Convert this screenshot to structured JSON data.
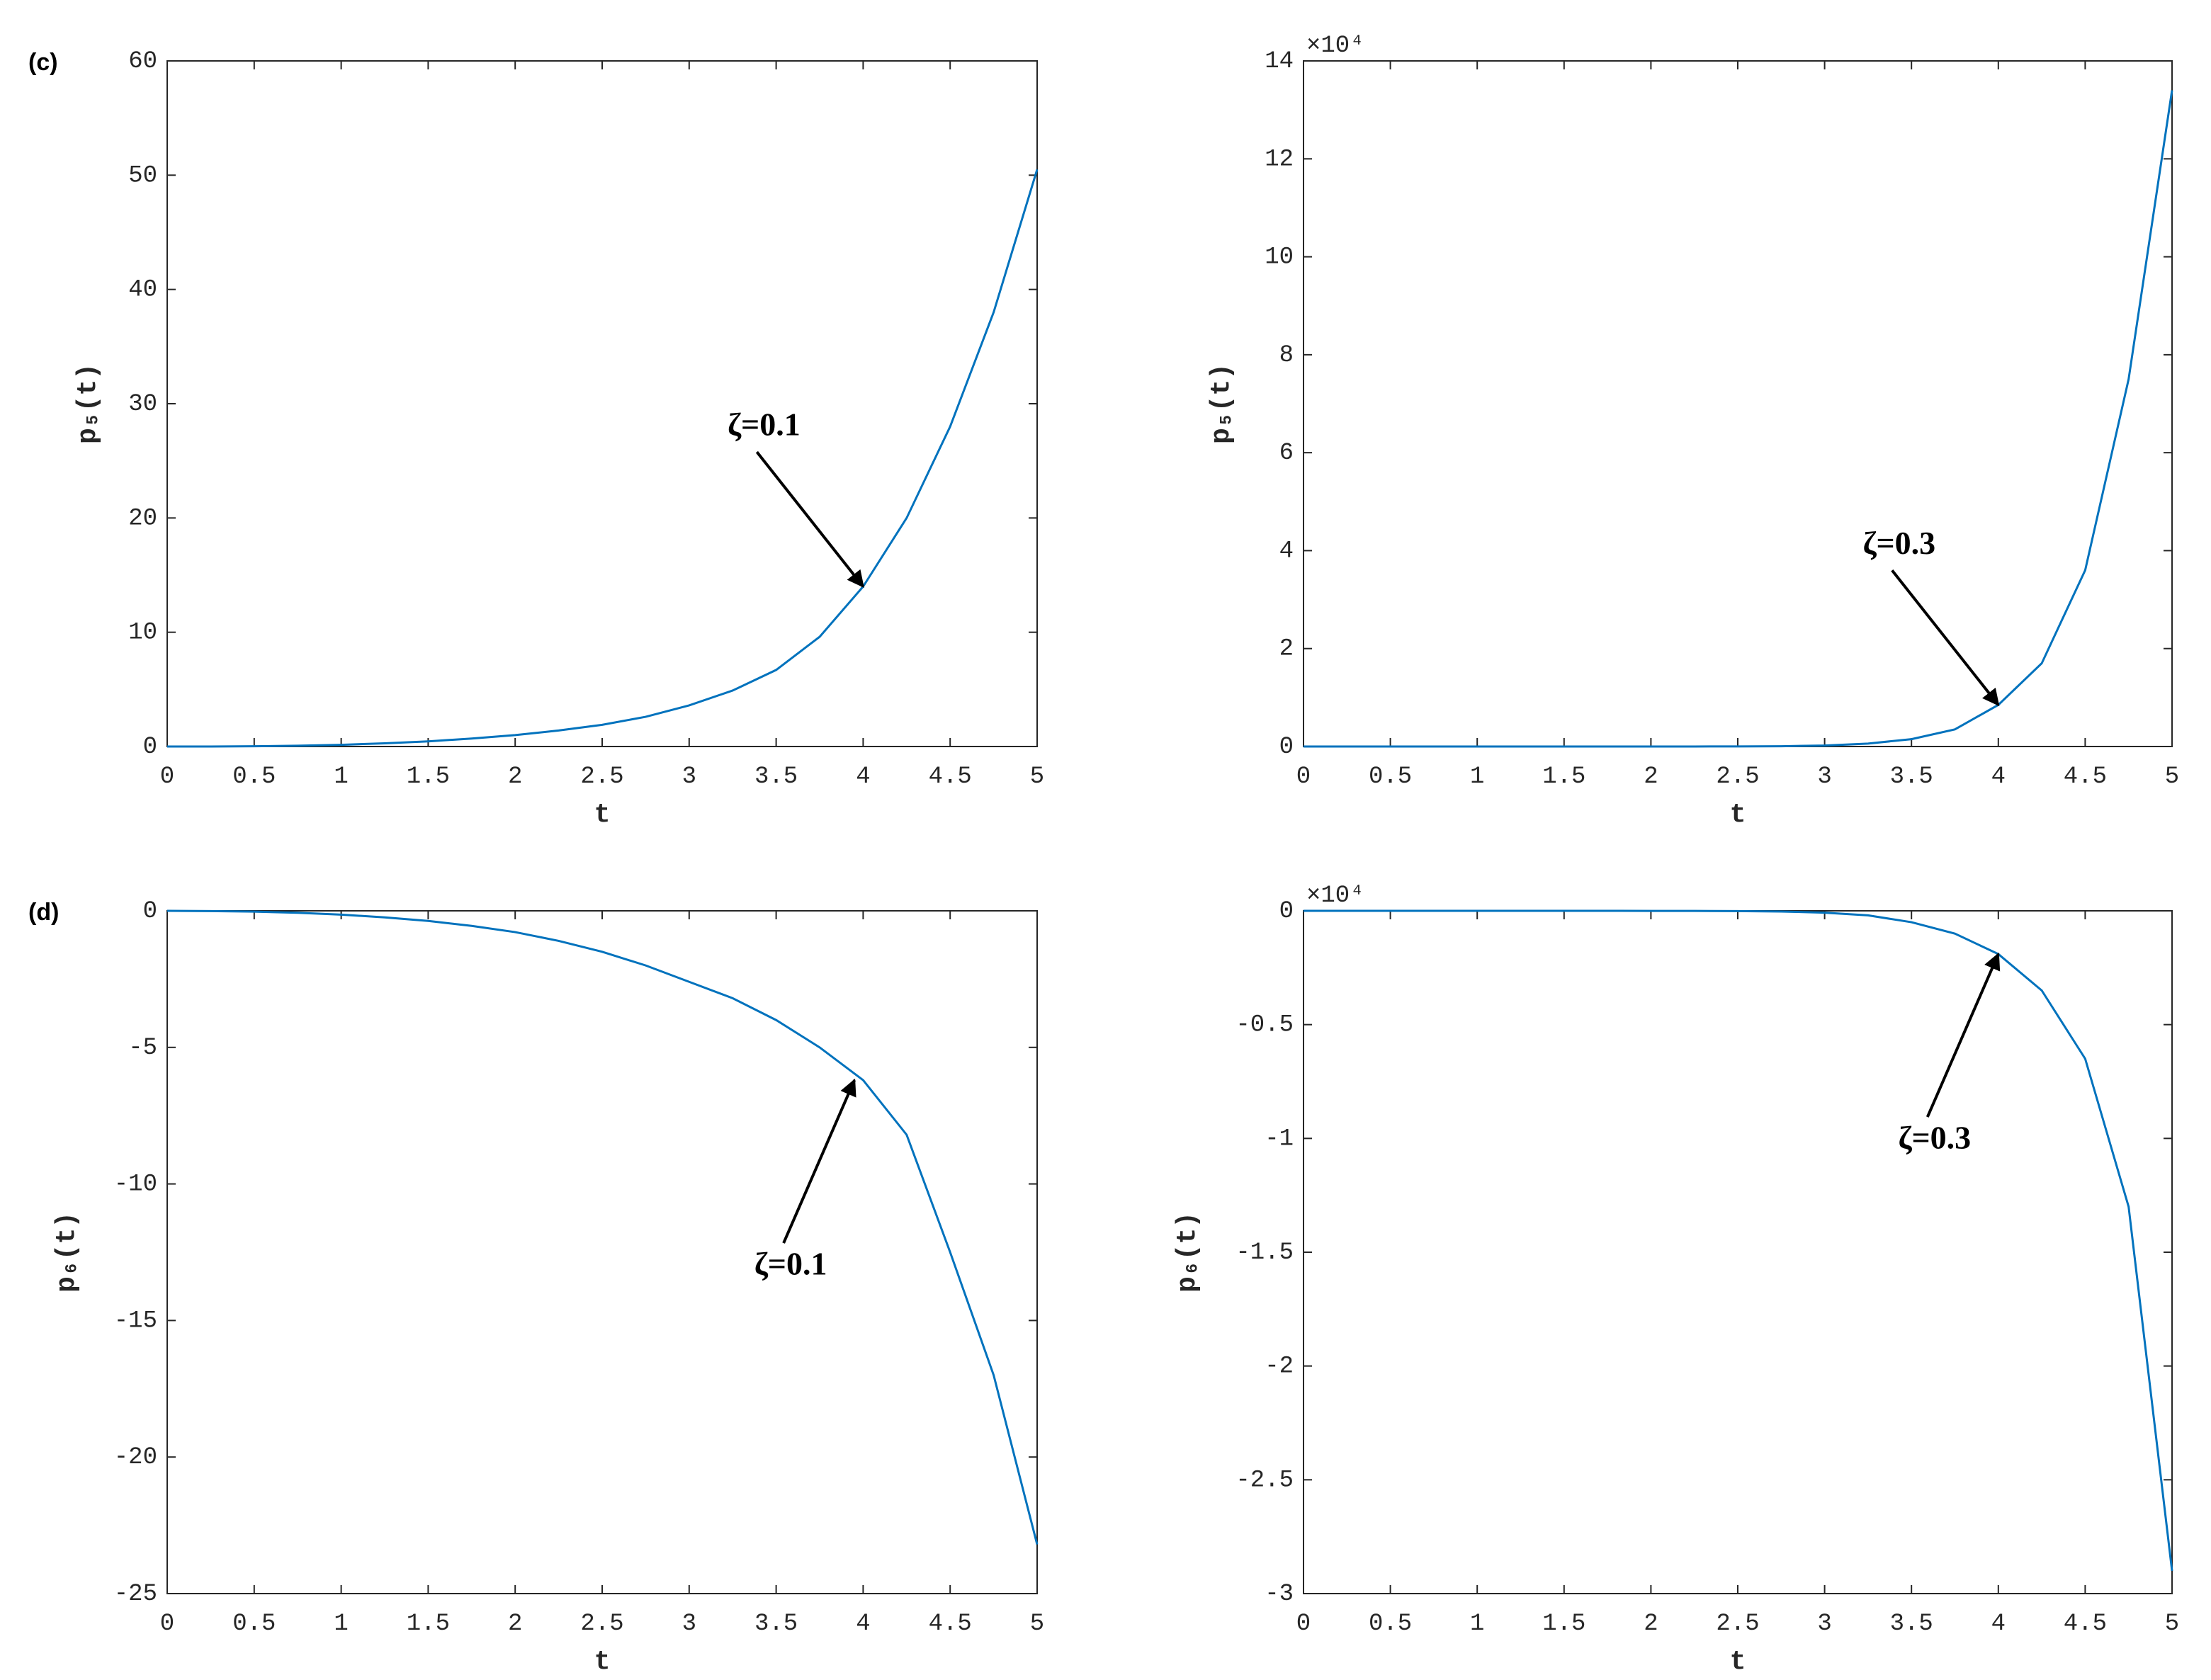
{
  "chart_data": [
    {
      "type": "line",
      "panel_label": "(c)",
      "xlabel": "t",
      "ylabel": "p₅(t)",
      "x": [
        0,
        0.25,
        0.5,
        0.75,
        1,
        1.25,
        1.5,
        1.75,
        2,
        2.25,
        2.5,
        2.75,
        3,
        3.25,
        3.5,
        3.75,
        4,
        4.25,
        4.5,
        4.75,
        5
      ],
      "values": [
        0,
        0.002,
        0.02,
        0.07,
        0.15,
        0.28,
        0.45,
        0.7,
        1.0,
        1.4,
        1.9,
        2.6,
        3.6,
        4.9,
        6.7,
        9.6,
        14,
        20,
        28,
        38,
        50.5
      ],
      "color": "#0072bd",
      "xlim": [
        0,
        5
      ],
      "xticks": [
        0,
        0.5,
        1,
        1.5,
        2,
        2.5,
        3,
        3.5,
        4,
        4.5,
        5
      ],
      "ylim": [
        0,
        60
      ],
      "yticks": [
        0,
        10,
        20,
        30,
        40,
        50,
        60
      ],
      "annotations": [
        {
          "text": "ζ=0.1",
          "x": 4,
          "y": 14
        }
      ]
    },
    {
      "type": "line",
      "xlabel": "t",
      "ylabel": "p₅(t)",
      "y_exponent": "×10⁴",
      "x": [
        0,
        0.25,
        0.5,
        0.75,
        1,
        1.25,
        1.5,
        1.75,
        2,
        2.25,
        2.5,
        2.75,
        3,
        3.25,
        3.5,
        3.75,
        4,
        4.25,
        4.5,
        4.75,
        5
      ],
      "values": [
        0,
        0,
        0,
        0,
        0,
        0,
        0,
        0.0001,
        0.0003,
        0.0008,
        0.002,
        0.006,
        0.02,
        0.06,
        0.15,
        0.35,
        0.85,
        1.7,
        3.6,
        7.5,
        13.4
      ],
      "color": "#0072bd",
      "xlim": [
        0,
        5
      ],
      "xticks": [
        0,
        0.5,
        1,
        1.5,
        2,
        2.5,
        3,
        3.5,
        4,
        4.5,
        5
      ],
      "ylim": [
        0,
        14
      ],
      "yticks": [
        0,
        2,
        4,
        6,
        8,
        10,
        12,
        14
      ],
      "annotations": [
        {
          "text": "ζ=0.3",
          "x": 4,
          "y": 0.85
        }
      ]
    },
    {
      "type": "line",
      "panel_label": "(d)",
      "xlabel": "t",
      "ylabel": "p₆(t)",
      "x": [
        0,
        0.25,
        0.5,
        0.75,
        1,
        1.25,
        1.5,
        1.75,
        2,
        2.25,
        2.5,
        2.75,
        3,
        3.25,
        3.5,
        3.75,
        4,
        4.25,
        4.5,
        4.75,
        5
      ],
      "values": [
        0,
        -0.01,
        -0.03,
        -0.07,
        -0.14,
        -0.24,
        -0.37,
        -0.55,
        -0.78,
        -1.1,
        -1.5,
        -2.0,
        -2.6,
        -3.2,
        -4.0,
        -5.0,
        -6.2,
        -8.2,
        -12.5,
        -17,
        -23.2
      ],
      "color": "#0072bd",
      "xlim": [
        0,
        5
      ],
      "xticks": [
        0,
        0.5,
        1,
        1.5,
        2,
        2.5,
        3,
        3.5,
        4,
        4.5,
        5
      ],
      "ylim": [
        -25,
        0
      ],
      "yticks": [
        -25,
        -20,
        -15,
        -10,
        -5,
        0
      ],
      "annotations": [
        {
          "text": "ζ=0.1",
          "x": 3.95,
          "y": -6.2
        }
      ]
    },
    {
      "type": "line",
      "xlabel": "t",
      "ylabel": "p₆(t)",
      "y_exponent": "×10⁴",
      "x": [
        0,
        0.25,
        0.5,
        0.75,
        1,
        1.25,
        1.5,
        1.75,
        2,
        2.25,
        2.5,
        2.75,
        3,
        3.25,
        3.5,
        3.75,
        4,
        4.25,
        4.5,
        4.75,
        5
      ],
      "values": [
        0,
        0,
        0,
        0,
        0,
        0,
        0,
        -0.0001,
        -0.0002,
        -0.0005,
        -0.001,
        -0.003,
        -0.008,
        -0.02,
        -0.05,
        -0.1,
        -0.19,
        -0.35,
        -0.65,
        -1.3,
        -2.9
      ],
      "color": "#0072bd",
      "xlim": [
        0,
        5
      ],
      "xticks": [
        0,
        0.5,
        1,
        1.5,
        2,
        2.5,
        3,
        3.5,
        4,
        4.5,
        5
      ],
      "ylim": [
        -3,
        0
      ],
      "yticks": [
        -3,
        -2.5,
        -2,
        -1.5,
        -1,
        -0.5,
        0
      ],
      "annotations": [
        {
          "text": "ζ=0.3",
          "x": 4,
          "y": -0.19
        }
      ]
    }
  ]
}
